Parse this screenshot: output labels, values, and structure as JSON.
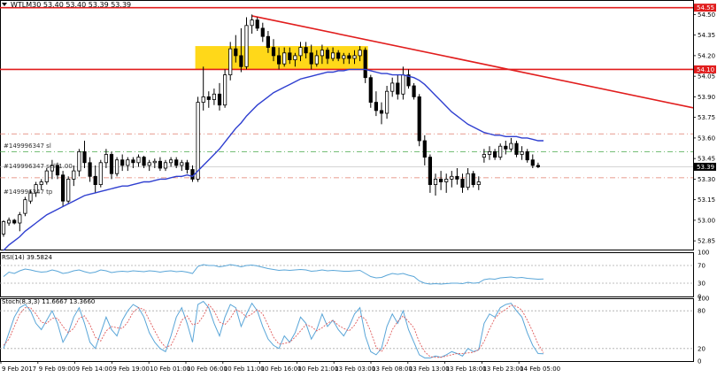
{
  "header": {
    "symbol_line": "WTLM30  53.40 53.40 53.39 53.39"
  },
  "price_axis": {
    "ticks": [
      "54.50",
      "54.35",
      "54.20",
      "54.05",
      "53.90",
      "53.75",
      "53.60",
      "53.45",
      "53.30",
      "53.15",
      "53.00",
      "52.85"
    ],
    "resistance_label": "54.55",
    "support_label": "54.10",
    "current_label": "53.39"
  },
  "order_lines": {
    "sl": "#149996347 sl",
    "sell": "#149996347 sell 1.00",
    "tp": "#149996347 tp"
  },
  "rsi_panel": {
    "title": "RSI(14) 39.5824",
    "ticks": [
      "100",
      "70",
      "30",
      "0"
    ]
  },
  "stoch_panel": {
    "title": "Stoch(8,3,3) 11.6667 13.3660",
    "ticks": [
      "100",
      "80",
      "20",
      "0"
    ]
  },
  "time_axis": {
    "labels": [
      "9 Feb 2017",
      "9 Feb 09:00",
      "9 Feb 14:00",
      "9 Feb 19:00",
      "10 Feb 01:00",
      "10 Feb 06:00",
      "10 Feb 11:00",
      "10 Feb 16:00",
      "10 Feb 21:00",
      "13 Feb 03:00",
      "13 Feb 08:00",
      "13 Feb 13:00",
      "13 Feb 18:00",
      "13 Feb 23:00",
      "14 Feb 05:00"
    ]
  },
  "colors": {
    "candle": "#000000",
    "resistance": "#e11d1d",
    "ma": "#2f3fd0",
    "zone": "#ffd400",
    "order_line": "#e07b6a",
    "sell_line": "#49a84c",
    "rsi": "#5aa6d8",
    "stoch_main": "#5aa6d8",
    "stoch_signal": "#e05b5b",
    "axis_text": "#000000"
  },
  "chart_data": [
    {
      "type": "candlestick",
      "title": "WTLM30",
      "ylim": [
        52.78,
        54.58
      ],
      "y_ticks": [
        54.5,
        54.35,
        54.2,
        54.05,
        53.9,
        53.75,
        53.6,
        53.45,
        53.3,
        53.15,
        53.0,
        52.85
      ],
      "x_labels": [
        "9 Feb 2017",
        "9 Feb 09:00",
        "9 Feb 14:00",
        "9 Feb 19:00",
        "10 Feb 01:00",
        "10 Feb 06:00",
        "10 Feb 11:00",
        "10 Feb 16:00",
        "10 Feb 21:00",
        "13 Feb 03:00",
        "13 Feb 08:00",
        "13 Feb 13:00",
        "13 Feb 18:00",
        "13 Feb 23:00",
        "14 Feb 05:00"
      ],
      "ohlc": [
        [
          52.9,
          53.0,
          52.88,
          52.99
        ],
        [
          52.98,
          53.02,
          52.96,
          53.0
        ],
        [
          53.0,
          53.01,
          52.97,
          52.98
        ],
        [
          52.98,
          53.06,
          52.92,
          53.04
        ],
        [
          53.05,
          53.17,
          53.03,
          53.15
        ],
        [
          53.14,
          53.22,
          53.12,
          53.2
        ],
        [
          53.2,
          53.28,
          53.17,
          53.26
        ],
        [
          53.26,
          53.3,
          53.22,
          53.28
        ],
        [
          53.28,
          53.38,
          53.26,
          53.36
        ],
        [
          53.36,
          53.44,
          53.3,
          53.4
        ],
        [
          53.4,
          53.42,
          53.3,
          53.33
        ],
        [
          53.33,
          53.36,
          53.1,
          53.14
        ],
        [
          53.14,
          53.32,
          53.12,
          53.3
        ],
        [
          53.3,
          53.4,
          53.25,
          53.36
        ],
        [
          53.36,
          53.52,
          53.32,
          53.5
        ],
        [
          53.5,
          53.58,
          53.38,
          53.42
        ],
        [
          53.42,
          53.46,
          53.28,
          53.32
        ],
        [
          53.32,
          53.4,
          53.2,
          53.26
        ],
        [
          53.26,
          53.44,
          53.24,
          53.42
        ],
        [
          53.42,
          53.52,
          53.38,
          53.48
        ],
        [
          53.48,
          53.5,
          53.3,
          53.34
        ],
        [
          53.34,
          53.46,
          53.32,
          53.44
        ],
        [
          53.44,
          53.48,
          53.36,
          53.4
        ],
        [
          53.4,
          53.46,
          53.36,
          53.44
        ],
        [
          53.44,
          53.46,
          53.38,
          53.42
        ],
        [
          53.42,
          53.48,
          53.39,
          53.46
        ],
        [
          53.46,
          53.47,
          53.38,
          53.4
        ],
        [
          53.4,
          53.44,
          53.36,
          53.42
        ],
        [
          53.42,
          53.45,
          53.38,
          53.43
        ],
        [
          53.43,
          53.46,
          53.36,
          53.38
        ],
        [
          53.38,
          53.44,
          53.36,
          53.42
        ],
        [
          53.42,
          53.46,
          53.39,
          53.44
        ],
        [
          53.44,
          53.46,
          53.38,
          53.4
        ],
        [
          53.4,
          53.44,
          53.36,
          53.42
        ],
        [
          53.42,
          53.44,
          53.34,
          53.37
        ],
        [
          53.37,
          53.4,
          53.28,
          53.3
        ],
        [
          53.3,
          53.9,
          53.28,
          53.86
        ],
        [
          53.86,
          54.12,
          53.8,
          53.9
        ],
        [
          53.9,
          53.94,
          53.82,
          53.88
        ],
        [
          53.88,
          53.96,
          53.84,
          53.92
        ],
        [
          53.92,
          54.0,
          53.8,
          53.84
        ],
        [
          53.84,
          54.1,
          53.82,
          54.06
        ],
        [
          54.06,
          54.3,
          54.02,
          54.25
        ],
        [
          54.25,
          54.35,
          54.15,
          54.2
        ],
        [
          54.2,
          54.4,
          54.08,
          54.12
        ],
        [
          54.12,
          54.48,
          54.1,
          54.42
        ],
        [
          54.42,
          54.5,
          54.36,
          54.46
        ],
        [
          54.46,
          54.48,
          54.38,
          54.4
        ],
        [
          54.4,
          54.44,
          54.3,
          54.34
        ],
        [
          54.34,
          54.38,
          54.22,
          54.26
        ],
        [
          54.26,
          54.32,
          54.16,
          54.2
        ],
        [
          54.2,
          54.26,
          54.1,
          54.14
        ],
        [
          54.14,
          54.26,
          54.12,
          54.22
        ],
        [
          54.22,
          54.26,
          54.14,
          54.17
        ],
        [
          54.17,
          54.22,
          54.12,
          54.2
        ],
        [
          54.2,
          54.3,
          54.16,
          54.26
        ],
        [
          54.26,
          54.3,
          54.18,
          54.22
        ],
        [
          54.22,
          54.28,
          54.1,
          54.14
        ],
        [
          54.14,
          54.24,
          54.12,
          54.2
        ],
        [
          54.2,
          54.28,
          54.14,
          54.24
        ],
        [
          54.24,
          54.26,
          54.14,
          54.18
        ],
        [
          54.18,
          54.26,
          54.16,
          54.22
        ],
        [
          54.22,
          54.24,
          54.16,
          54.18
        ],
        [
          54.18,
          54.22,
          54.14,
          54.2
        ],
        [
          54.2,
          54.22,
          54.14,
          54.18
        ],
        [
          54.18,
          54.24,
          54.14,
          54.2
        ],
        [
          54.2,
          54.27,
          54.16,
          54.24
        ],
        [
          54.24,
          54.26,
          54.0,
          54.04
        ],
        [
          54.04,
          54.06,
          53.82,
          53.86
        ],
        [
          53.86,
          53.94,
          53.76,
          53.8
        ],
        [
          53.8,
          53.86,
          53.7,
          53.78
        ],
        [
          53.78,
          53.98,
          53.74,
          53.94
        ],
        [
          53.94,
          54.04,
          53.9,
          54.0
        ],
        [
          54.0,
          54.06,
          53.88,
          53.92
        ],
        [
          53.92,
          54.12,
          53.88,
          54.06
        ],
        [
          54.06,
          54.1,
          53.96,
          53.98
        ],
        [
          53.98,
          54.0,
          53.88,
          53.9
        ],
        [
          53.9,
          53.92,
          53.54,
          53.58
        ],
        [
          53.58,
          53.62,
          53.4,
          53.46
        ],
        [
          53.46,
          53.48,
          53.2,
          53.26
        ],
        [
          53.26,
          53.34,
          53.18,
          53.3
        ],
        [
          53.3,
          53.36,
          53.22,
          53.28
        ],
        [
          53.28,
          53.34,
          53.2,
          53.3
        ],
        [
          53.3,
          53.36,
          53.24,
          53.32
        ],
        [
          53.32,
          53.38,
          53.26,
          53.3
        ],
        [
          53.3,
          53.34,
          53.2,
          53.24
        ],
        [
          53.24,
          53.38,
          53.22,
          53.34
        ],
        [
          53.34,
          53.36,
          53.24,
          53.26
        ],
        [
          53.26,
          53.32,
          53.22,
          53.28
        ],
        [
          53.46,
          53.52,
          53.42,
          53.48
        ],
        [
          53.48,
          53.54,
          53.44,
          53.5
        ],
        [
          53.5,
          53.52,
          53.44,
          53.46
        ],
        [
          53.46,
          53.56,
          53.44,
          53.54
        ],
        [
          53.54,
          53.58,
          53.48,
          53.52
        ],
        [
          53.52,
          53.6,
          53.5,
          53.56
        ],
        [
          53.56,
          53.58,
          53.46,
          53.48
        ],
        [
          53.48,
          53.54,
          53.44,
          53.5
        ],
        [
          53.5,
          53.52,
          53.42,
          53.44
        ],
        [
          53.44,
          53.48,
          53.38,
          53.4
        ],
        [
          53.4,
          53.42,
          53.38,
          53.39
        ]
      ],
      "moving_average": [
        52.78,
        52.82,
        52.85,
        52.88,
        52.92,
        52.95,
        52.98,
        53.01,
        53.04,
        53.06,
        53.08,
        53.1,
        53.12,
        53.14,
        53.16,
        53.18,
        53.19,
        53.2,
        53.21,
        53.22,
        53.23,
        53.24,
        53.25,
        53.25,
        53.26,
        53.27,
        53.28,
        53.28,
        53.29,
        53.3,
        53.3,
        53.31,
        53.32,
        53.32,
        53.33,
        53.32,
        53.36,
        53.4,
        53.44,
        53.48,
        53.52,
        53.57,
        53.62,
        53.67,
        53.71,
        53.76,
        53.8,
        53.84,
        53.87,
        53.9,
        53.93,
        53.95,
        53.97,
        53.99,
        54.01,
        54.03,
        54.04,
        54.05,
        54.06,
        54.07,
        54.08,
        54.08,
        54.09,
        54.09,
        54.1,
        54.1,
        54.1,
        54.1,
        54.09,
        54.08,
        54.07,
        54.07,
        54.06,
        54.06,
        54.06,
        54.05,
        54.04,
        54.02,
        53.99,
        53.95,
        53.91,
        53.87,
        53.83,
        53.79,
        53.76,
        53.73,
        53.7,
        53.68,
        53.66,
        53.64,
        53.63,
        53.62,
        53.62,
        53.61,
        53.61,
        53.61,
        53.6,
        53.6,
        53.59,
        53.58,
        53.58
      ],
      "horizontal_levels": {
        "resistance": 54.55,
        "support": 54.1,
        "stop_loss": 53.63,
        "sell_entry": 53.5,
        "take_profit": 53.31
      },
      "trendline": {
        "start": [
          46,
          54.49
        ],
        "end": [
          133,
          53.82
        ]
      },
      "zone": {
        "start_index": 36,
        "end_index": 67,
        "low": 54.1,
        "high": 54.27
      }
    },
    {
      "type": "line",
      "title": "RSI(14) 39.5824",
      "ylim": [
        0,
        100
      ],
      "y_ticks": [
        100,
        70,
        30,
        0
      ],
      "series": [
        {
          "name": "RSI(14)",
          "values": [
            45,
            55,
            52,
            58,
            62,
            60,
            57,
            55,
            56,
            60,
            57,
            52,
            54,
            58,
            60,
            56,
            53,
            55,
            60,
            58,
            54,
            56,
            57,
            56,
            58,
            57,
            56,
            58,
            57,
            55,
            57,
            58,
            56,
            57,
            55,
            52,
            68,
            72,
            70,
            70,
            67,
            69,
            72,
            70,
            67,
            70,
            71,
            69,
            66,
            63,
            61,
            59,
            60,
            59,
            60,
            61,
            60,
            57,
            58,
            60,
            58,
            59,
            58,
            57,
            57,
            58,
            59,
            52,
            45,
            42,
            43,
            48,
            52,
            50,
            52,
            48,
            45,
            35,
            30,
            28,
            29,
            28,
            29,
            30,
            30,
            29,
            32,
            30,
            31,
            38,
            40,
            39,
            42,
            43,
            44,
            42,
            43,
            41,
            40,
            39,
            39.58
          ]
        }
      ]
    },
    {
      "type": "line",
      "title": "Stoch(8,3,3) 11.6667 13.3660",
      "ylim": [
        0,
        100
      ],
      "y_ticks": [
        100,
        80,
        20,
        0
      ],
      "series": [
        {
          "name": "Stoch(8,3,3)",
          "values": [
            20,
            45,
            70,
            85,
            90,
            80,
            60,
            50,
            65,
            80,
            60,
            30,
            45,
            70,
            85,
            60,
            30,
            20,
            45,
            70,
            50,
            40,
            65,
            80,
            90,
            85,
            70,
            45,
            30,
            20,
            15,
            40,
            70,
            85,
            60,
            30,
            90,
            95,
            85,
            60,
            40,
            70,
            90,
            85,
            55,
            75,
            92,
            80,
            55,
            35,
            25,
            20,
            40,
            30,
            45,
            70,
            60,
            35,
            50,
            75,
            55,
            65,
            50,
            40,
            55,
            75,
            85,
            40,
            15,
            10,
            20,
            55,
            75,
            60,
            80,
            50,
            30,
            10,
            5,
            5,
            8,
            6,
            10,
            15,
            12,
            8,
            20,
            15,
            18,
            60,
            75,
            70,
            85,
            90,
            92,
            80,
            70,
            45,
            25,
            12,
            11.67
          ]
        },
        {
          "name": "Signal",
          "values": [
            25,
            35,
            55,
            75,
            85,
            85,
            75,
            62,
            60,
            68,
            68,
            55,
            45,
            52,
            68,
            72,
            58,
            38,
            32,
            48,
            55,
            53,
            52,
            62,
            78,
            85,
            82,
            65,
            48,
            32,
            22,
            25,
            42,
            65,
            72,
            58,
            60,
            72,
            90,
            80,
            62,
            58,
            68,
            82,
            78,
            70,
            75,
            82,
            75,
            57,
            38,
            27,
            28,
            30,
            38,
            48,
            58,
            55,
            48,
            53,
            60,
            65,
            57,
            52,
            48,
            57,
            72,
            67,
            47,
            22,
            15,
            28,
            50,
            63,
            72,
            63,
            53,
            30,
            15,
            7,
            6,
            6,
            8,
            10,
            12,
            12,
            13,
            14,
            18,
            31,
            51,
            68,
            77,
            82,
            89,
            87,
            81,
            65,
            47,
            27,
            13.37
          ]
        }
      ]
    }
  ]
}
